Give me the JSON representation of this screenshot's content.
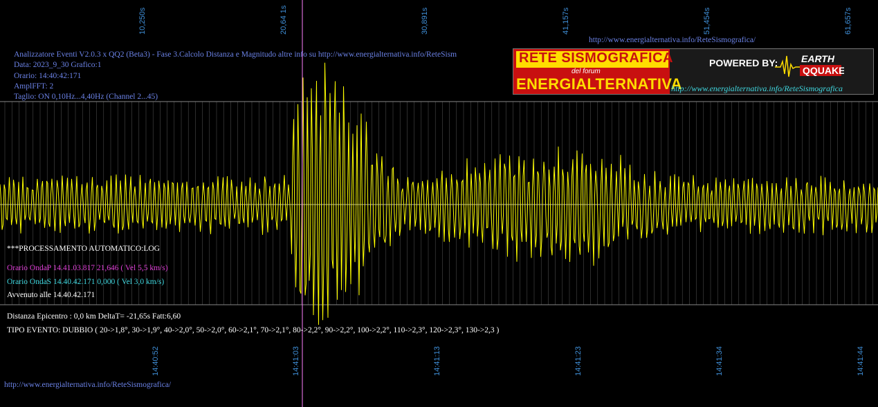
{
  "header": {
    "top_url": "http://www.energialternativa.info/ReteSismografica/",
    "info_lines": [
      "Analizzatore Eventi V2.0.3 x QQ2 (Beta3) - Fase 3.Calcolo Distanza e Magnitudo altre info su http://www.energialternativa.info/ReteSism",
      "Data: 2023_9_30 Grafico:1",
      "Orario: 14:40:42:171",
      "AmplFFT: 2",
      "Taglio: ON 0,10Hz...4,40Hz       (Channel 2...45)"
    ]
  },
  "banner": {
    "line1": "RETE SISMOGRAFICA",
    "line2": "del forum",
    "line3": "ENERGIALTERNATIVA",
    "powered": "POWERED BY:",
    "logo_top": "EARTH",
    "logo_bottom": "QQUAKE",
    "url": "http://www.energialternativa.info/ReteSismografica"
  },
  "top_ticks": [
    "10,250s",
    "20,64 1s",
    "30,891s",
    "41,157s",
    "51,454s",
    "61,657s"
  ],
  "bottom_ticks": [
    "14:40:52",
    "14:41:03",
    "14:41:13",
    "14:41:23",
    "14:41:34",
    "14:41:44"
  ],
  "processing": {
    "title": "***PROCESSAMENTO AUTOMATICO:LOG",
    "onda_p": "Orario OndaP 14.41.03.817  21,646 ( Vel 5,5 km/s)",
    "onda_s": "Orario OndaS 14.40.42.171  0,000 ( Vel 3,0 km/s)",
    "avvenuto": "Avvenuto alle 14.40.42.171"
  },
  "summary": {
    "distanza": "Distanza Epicentro : 0,0 km DeltaT= -21,65s  Fatt:6,60",
    "tipo": "TIPO EVENTO: DUBBIO ( 20->1,8°, 30->1,9°, 40->2,0°, 50->2,0°, 60->2,1°, 70->2,1°, 80->2,2°, 90->2,2°, 100->2,2°, 110->2,3°, 120->2,3°, 130->2,3 )"
  },
  "footer_url": "http://www.energialternativa.info/ReteSismografica/",
  "colors": {
    "background": "#000000",
    "trace": "#ffff00",
    "grid": "#808080",
    "marker": "#ff80ff",
    "tick_label": "#3f8fd8",
    "info_text": "#6b82e6",
    "onda_p": "#e040d8",
    "onda_s": "#40d8e0"
  }
}
